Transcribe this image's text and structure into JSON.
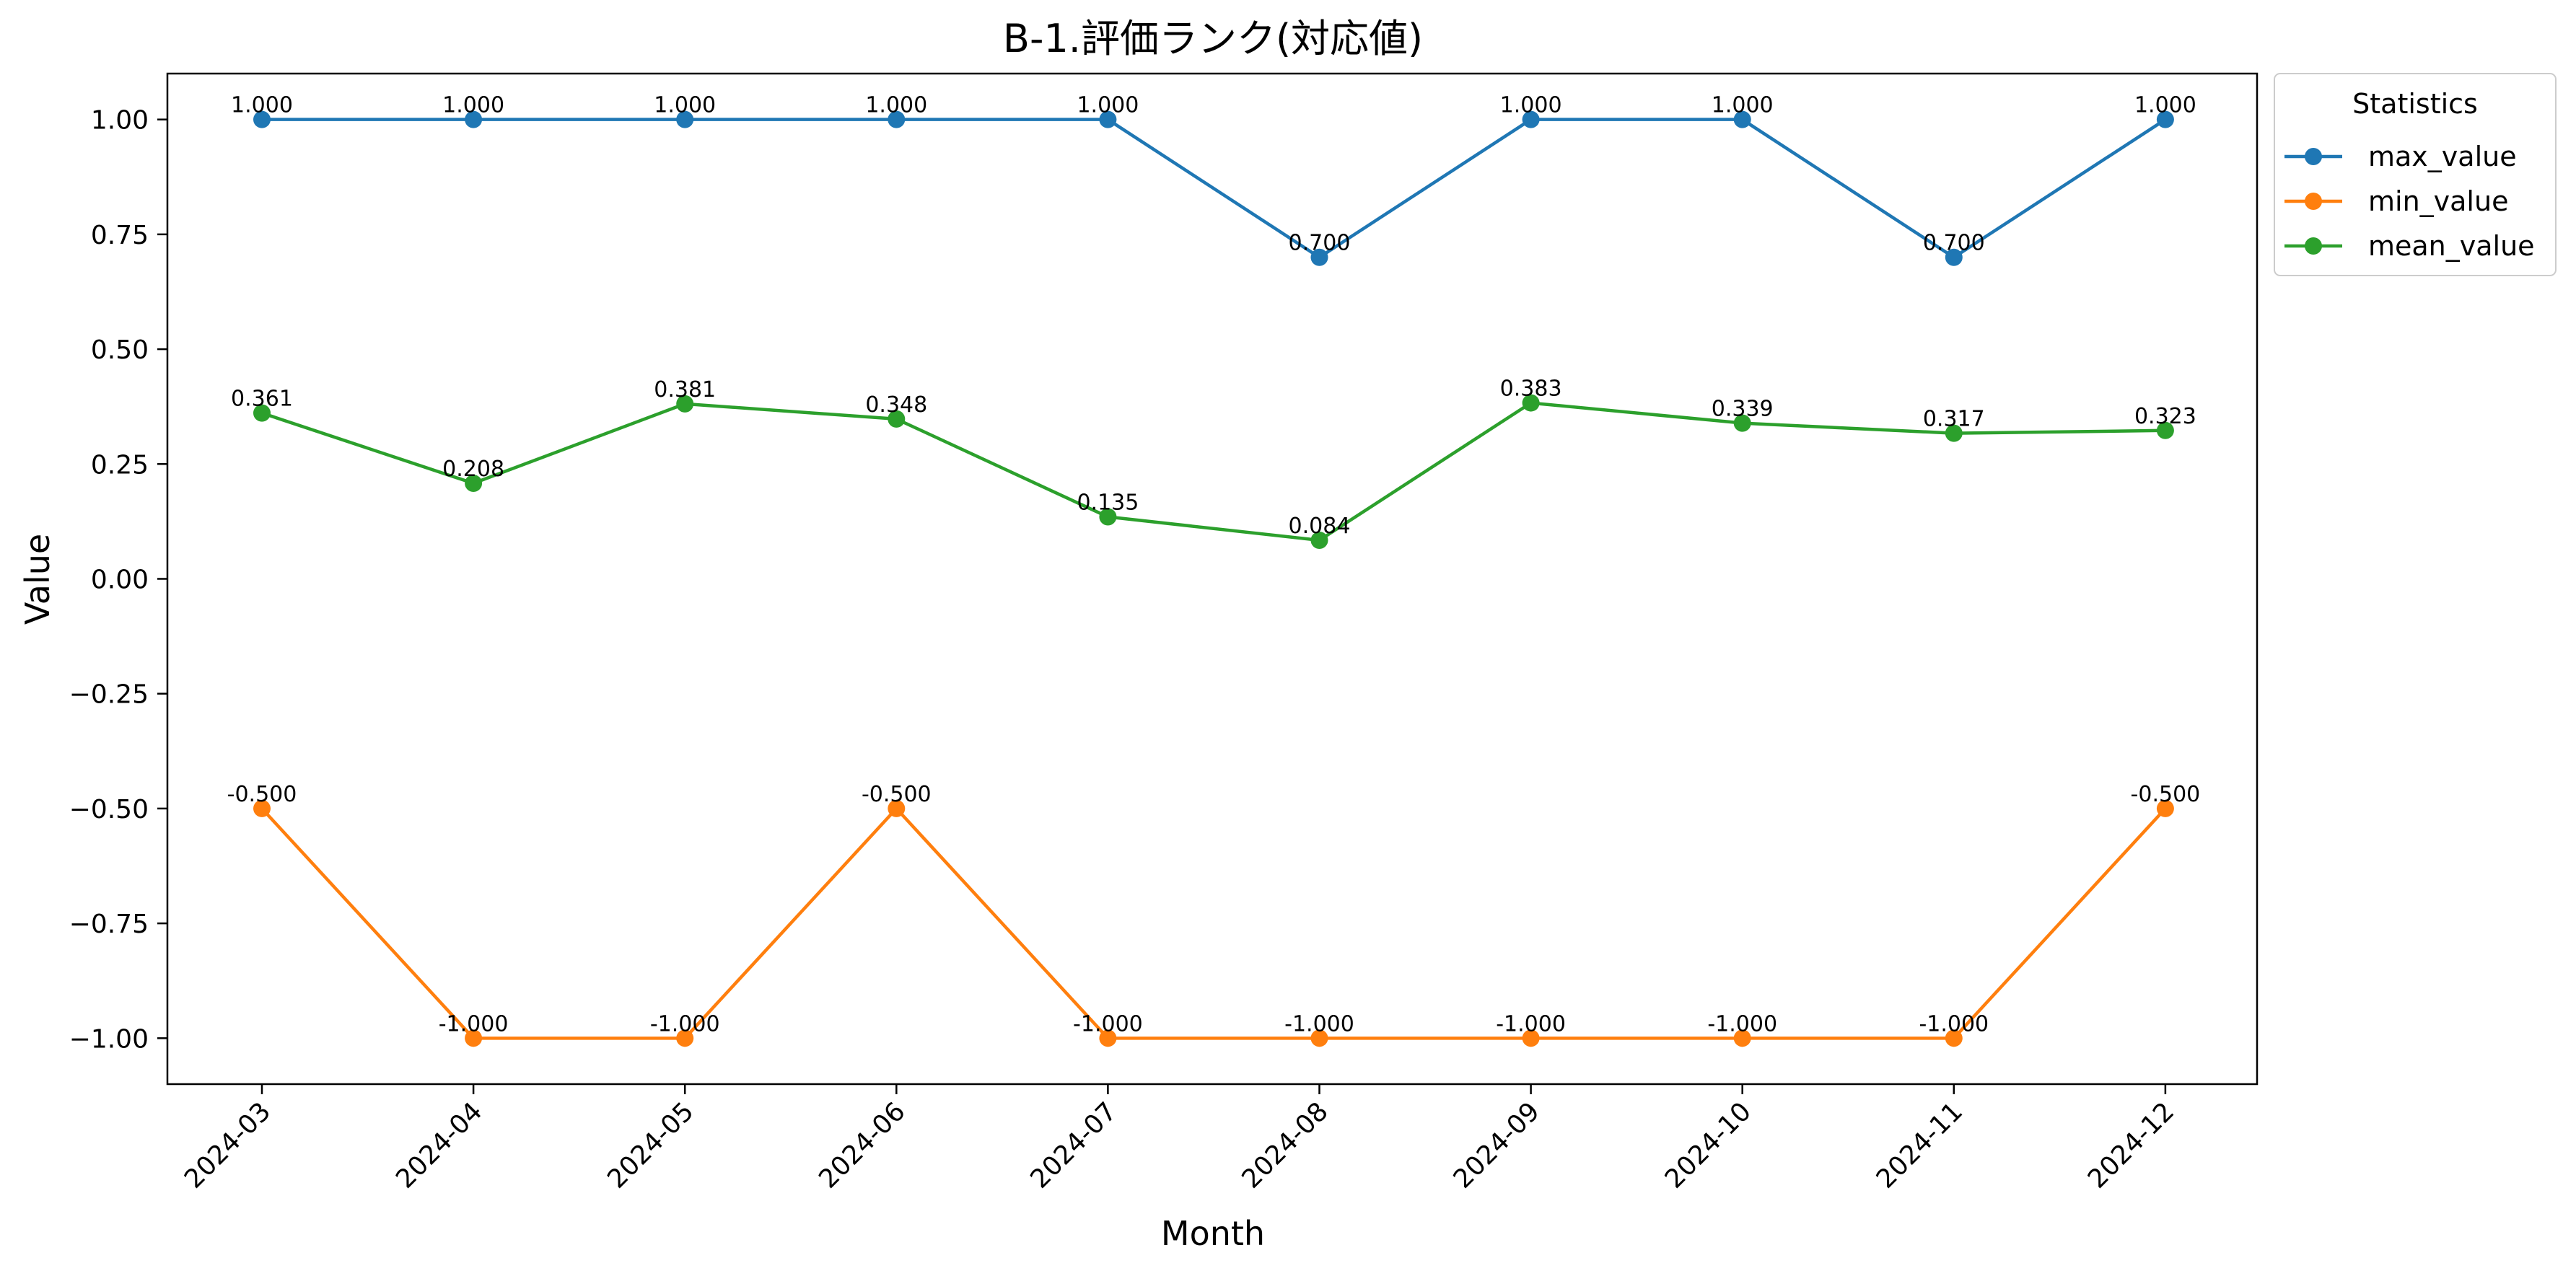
{
  "chart_data": {
    "type": "line",
    "title": "B-1.評価ランク(対応値)",
    "xlabel": "Month",
    "ylabel": "Value",
    "x": [
      "2024-03",
      "2024-04",
      "2024-05",
      "2024-06",
      "2024-07",
      "2024-08",
      "2024-09",
      "2024-10",
      "2024-11",
      "2024-12"
    ],
    "ylim": [
      -1.1,
      1.1
    ],
    "yticks": [
      1.0,
      0.75,
      0.5,
      0.25,
      0.0,
      -0.25,
      -0.5,
      -0.75,
      -1.0
    ],
    "ytick_labels": [
      "1.00",
      "0.75",
      "0.50",
      "0.25",
      "0.00",
      "−0.25",
      "−0.50",
      "−0.75",
      "−1.00"
    ],
    "grid": false,
    "legend": {
      "title": "Statistics",
      "placement": "outside-top-right"
    },
    "series": [
      {
        "name": "max_value",
        "color": "#1f77b4",
        "values": [
          1.0,
          1.0,
          1.0,
          1.0,
          1.0,
          0.7,
          1.0,
          1.0,
          0.7,
          1.0
        ],
        "labels": [
          "1.000",
          "1.000",
          "1.000",
          "1.000",
          "1.000",
          "0.700",
          "1.000",
          "1.000",
          "0.700",
          "1.000"
        ]
      },
      {
        "name": "min_value",
        "color": "#ff7f0e",
        "values": [
          -0.5,
          -1.0,
          -1.0,
          -0.5,
          -1.0,
          -1.0,
          -1.0,
          -1.0,
          -1.0,
          -0.5
        ],
        "labels": [
          "-0.500",
          "-1.000",
          "-1.000",
          "-0.500",
          "-1.000",
          "-1.000",
          "-1.000",
          "-1.000",
          "-1.000",
          "-0.500"
        ]
      },
      {
        "name": "mean_value",
        "color": "#2ca02c",
        "values": [
          0.361,
          0.208,
          0.381,
          0.348,
          0.135,
          0.084,
          0.383,
          0.339,
          0.317,
          0.323
        ],
        "labels": [
          "0.361",
          "0.208",
          "0.381",
          "0.348",
          "0.135",
          "0.084",
          "0.383",
          "0.339",
          "0.317",
          "0.323"
        ]
      }
    ]
  }
}
